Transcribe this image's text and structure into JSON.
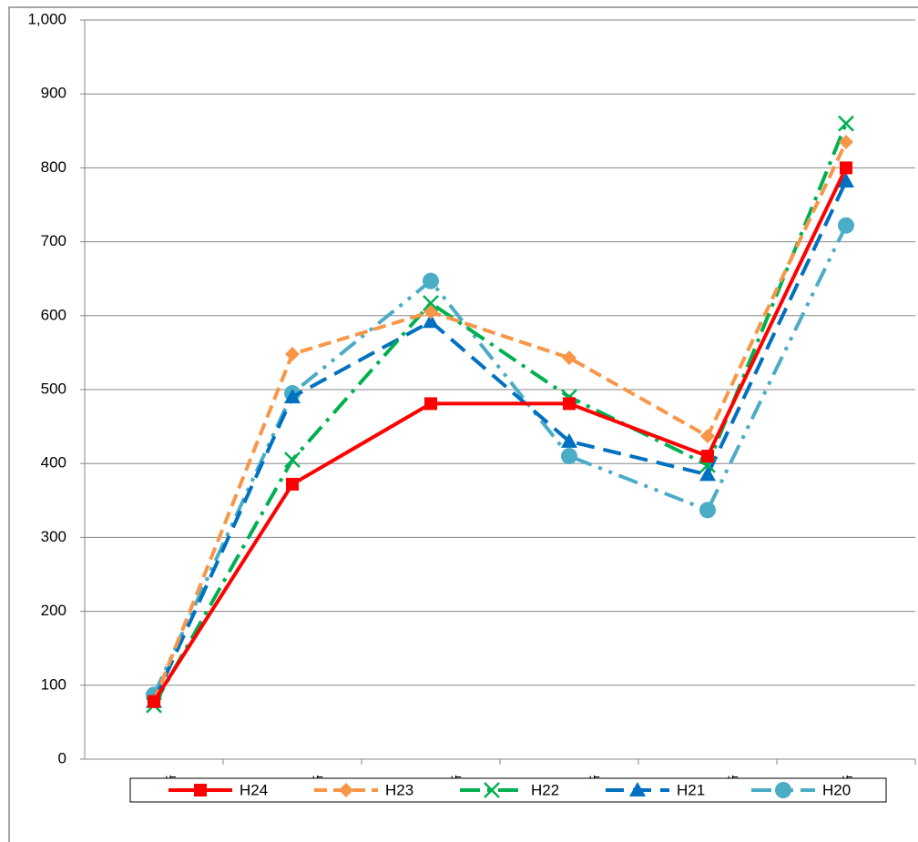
{
  "chart_data": {
    "type": "line",
    "categories": [
      "～19歳",
      "20～29歳",
      "30～39歳",
      "40～49歳",
      "50～59歳",
      "60歳～"
    ],
    "series": [
      {
        "name": "H24",
        "color": "#ff0000",
        "marker": "square",
        "line_style": "solid",
        "values": [
          78,
          372,
          481,
          481,
          410,
          800
        ]
      },
      {
        "name": "H23",
        "color": "#f79646",
        "marker": "diamond",
        "line_style": "dashed",
        "values": [
          78,
          548,
          605,
          543,
          437,
          835
        ]
      },
      {
        "name": "H22",
        "color": "#00b050",
        "marker": "x",
        "line_style": "dash-dot",
        "values": [
          73,
          405,
          617,
          490,
          398,
          860
        ]
      },
      {
        "name": "H21",
        "color": "#0070c0",
        "marker": "triangle",
        "line_style": "long-dash",
        "values": [
          78,
          490,
          592,
          430,
          385,
          782
        ]
      },
      {
        "name": "H20",
        "color": "#4bacc6",
        "marker": "circle",
        "line_style": "long-dash-dot-dot",
        "values": [
          87,
          495,
          647,
          410,
          337,
          722
        ]
      }
    ],
    "ylim": [
      0,
      1000
    ],
    "yticks": [
      0,
      100,
      200,
      300,
      400,
      500,
      600,
      700,
      800,
      900,
      {
        "value": 1000,
        "label": "1,000"
      }
    ],
    "grid": true,
    "legend": "bottom"
  }
}
